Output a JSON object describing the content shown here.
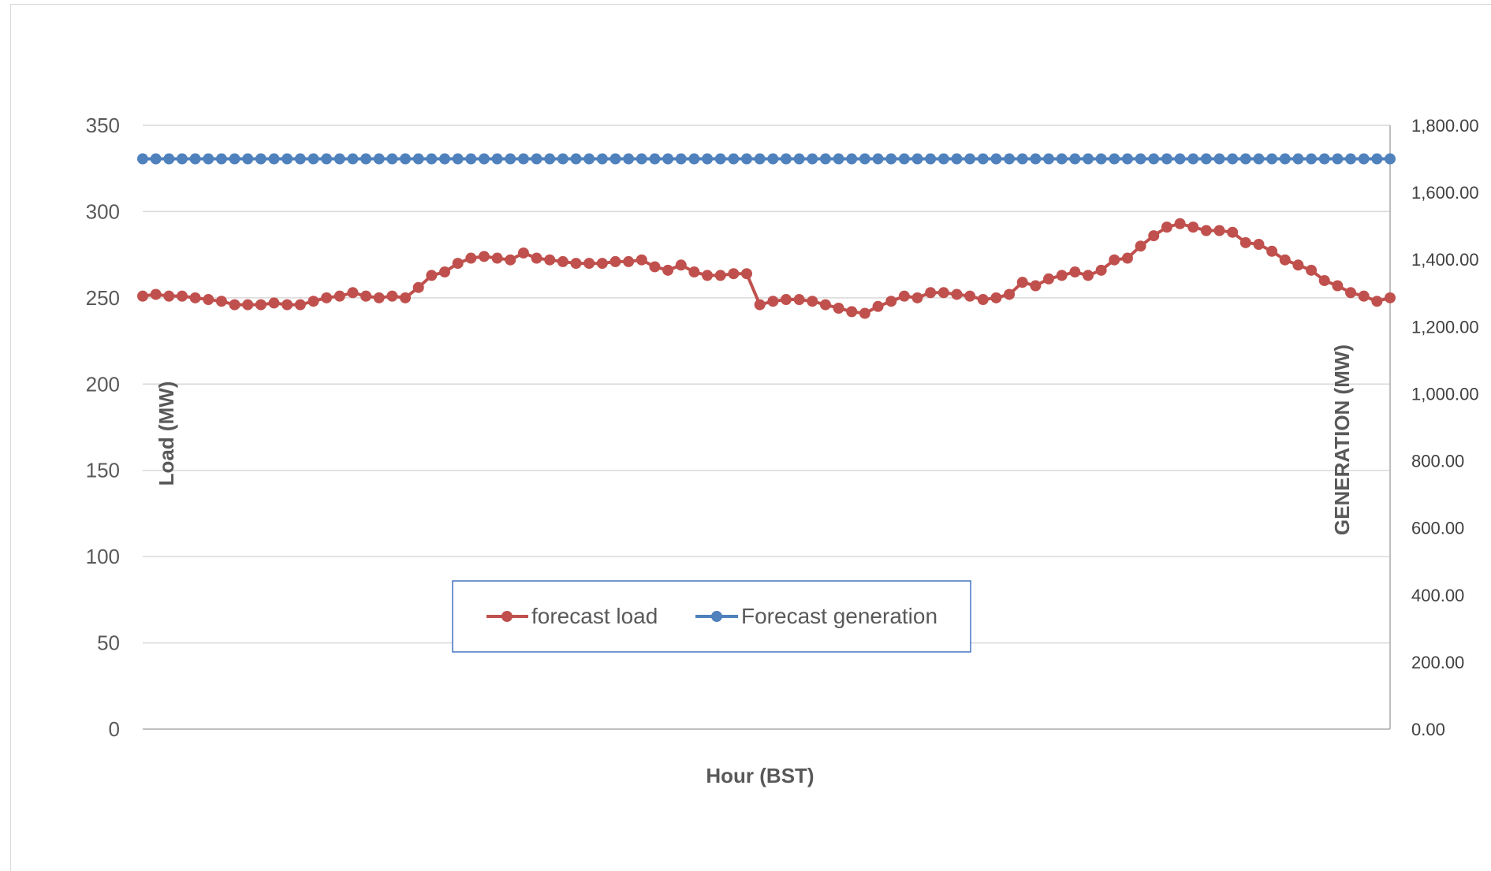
{
  "chart_data": {
    "type": "line",
    "title": "",
    "xlabel": "Hour (BST)",
    "ylabel": "Load (MW)",
    "ylabel_right": "GENERATION (MW)",
    "ylim": [
      0,
      350
    ],
    "ylim_right": [
      0,
      1800
    ],
    "yticks": [
      "0",
      "50",
      "100",
      "150",
      "200",
      "250",
      "300",
      "350"
    ],
    "yticks_right": [
      "0.00",
      "200.00",
      "400.00",
      "600.00",
      "800.00",
      "1,000.00",
      "1,200.00",
      "1,400.00",
      "1,600.00",
      "1,800.00"
    ],
    "grid": true,
    "legend_position": "bottom-center",
    "x": [
      1,
      2,
      3,
      4,
      5,
      6,
      7,
      8,
      9,
      10,
      11,
      12,
      13,
      14,
      15,
      16,
      17,
      18,
      19,
      20,
      21,
      22,
      23,
      24,
      25,
      26,
      27,
      28,
      29,
      30,
      31,
      32,
      33,
      34,
      35,
      36,
      37,
      38,
      39,
      40,
      41,
      42,
      43,
      44,
      45,
      46,
      47,
      48,
      49,
      50,
      51,
      52,
      53,
      54,
      55,
      56,
      57,
      58,
      59,
      60,
      61,
      62,
      63,
      64,
      65,
      66,
      67,
      68,
      69,
      70,
      71,
      72,
      73,
      74,
      75,
      76,
      77,
      78,
      79,
      80,
      81,
      82,
      83,
      84,
      85,
      86,
      87,
      88,
      89,
      90,
      91,
      92,
      93,
      94,
      95,
      96
    ],
    "series": [
      {
        "name": "forecast load",
        "axis": "left",
        "color": "#c0504d",
        "values": [
          251,
          252,
          251,
          251,
          250,
          249,
          248,
          246,
          246,
          246,
          247,
          246,
          246,
          248,
          250,
          251,
          253,
          251,
          250,
          251,
          250,
          256,
          263,
          265,
          270,
          273,
          274,
          273,
          272,
          276,
          273,
          272,
          271,
          270,
          270,
          270,
          271,
          271,
          272,
          268,
          266,
          269,
          265,
          263,
          263,
          264,
          264,
          246,
          248,
          249,
          249,
          248,
          246,
          244,
          242,
          241,
          245,
          248,
          251,
          250,
          253,
          253,
          252,
          251,
          249,
          250,
          252,
          259,
          257,
          261,
          263,
          265,
          263,
          266,
          272,
          273,
          280,
          286,
          291,
          293,
          291,
          289,
          289,
          288,
          282,
          281,
          277,
          272,
          269,
          266,
          260,
          257,
          253,
          251,
          248,
          250
        ]
      },
      {
        "name": "Forecast generation",
        "axis": "right",
        "color": "#4f81bd",
        "values": [
          1700,
          1700,
          1700,
          1700,
          1700,
          1700,
          1700,
          1700,
          1700,
          1700,
          1700,
          1700,
          1700,
          1700,
          1700,
          1700,
          1700,
          1700,
          1700,
          1700,
          1700,
          1700,
          1700,
          1700,
          1700,
          1700,
          1700,
          1700,
          1700,
          1700,
          1700,
          1700,
          1700,
          1700,
          1700,
          1700,
          1700,
          1700,
          1700,
          1700,
          1700,
          1700,
          1700,
          1700,
          1700,
          1700,
          1700,
          1700,
          1700,
          1700,
          1700,
          1700,
          1700,
          1700,
          1700,
          1700,
          1700,
          1700,
          1700,
          1700,
          1700,
          1700,
          1700,
          1700,
          1700,
          1700,
          1700,
          1700,
          1700,
          1700,
          1700,
          1700,
          1700,
          1700,
          1700,
          1700,
          1700,
          1700,
          1700,
          1700,
          1700,
          1700,
          1700,
          1700,
          1700,
          1700,
          1700,
          1700,
          1700,
          1700,
          1700,
          1700,
          1700,
          1700,
          1700,
          1700
        ]
      }
    ]
  }
}
